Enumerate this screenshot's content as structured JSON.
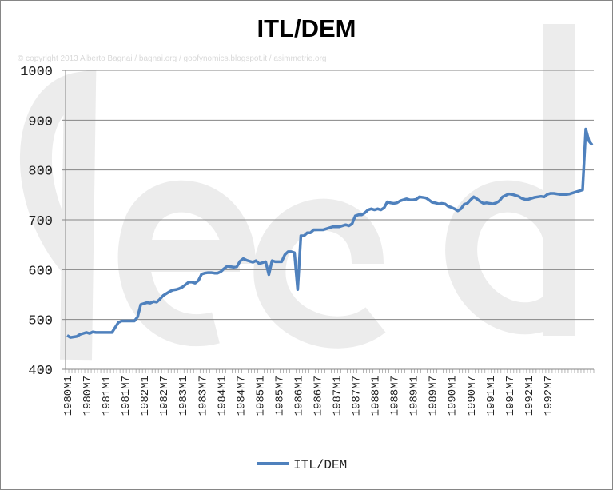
{
  "chart_data": {
    "type": "line",
    "title": "ITL/DEM",
    "watermark_text": "© copyright 2013 Alberto Bagnai / bagnai.org / goofynomics.blogspot.it / asimmetrie.org",
    "series_name": "ITL/DEM",
    "color": "#4f81bd",
    "ylim": [
      400,
      1000
    ],
    "yticks": [
      400,
      500,
      600,
      700,
      800,
      900,
      1000
    ],
    "grid": "horizontal",
    "legend": "bottom",
    "xtick_labels": [
      "1980M1",
      "1980M7",
      "1981M1",
      "1981M7",
      "1982M1",
      "1982M7",
      "1983M1",
      "1983M7",
      "1984M1",
      "1984M7",
      "1985M1",
      "1985M7",
      "1986M1",
      "1986M7",
      "1987M1",
      "1987M7",
      "1988M1",
      "1988M7",
      "1989M1",
      "1989M7",
      "1990M1",
      "1990M7",
      "1991M1",
      "1991M7",
      "1992M1",
      "1992M7"
    ],
    "x_start": "1980M1",
    "x_end": "1992M12",
    "values": [
      468,
      464,
      465,
      466,
      470,
      472,
      474,
      472,
      475,
      474,
      474,
      474,
      474,
      474,
      474,
      484,
      494,
      497,
      497,
      497,
      497,
      497,
      505,
      530,
      532,
      534,
      533,
      536,
      535,
      541,
      548,
      552,
      556,
      559,
      560,
      562,
      565,
      570,
      575,
      575,
      573,
      578,
      591,
      593,
      594,
      594,
      593,
      593,
      596,
      602,
      607,
      606,
      605,
      606,
      617,
      622,
      619,
      617,
      615,
      618,
      612,
      614,
      616,
      590,
      618,
      616,
      616,
      616,
      630,
      636,
      636,
      634,
      560,
      668,
      668,
      674,
      674,
      680,
      680,
      680,
      680,
      682,
      684,
      686,
      686,
      686,
      688,
      690,
      688,
      692,
      708,
      710,
      710,
      714,
      720,
      722,
      720,
      722,
      720,
      724,
      736,
      734,
      733,
      734,
      738,
      740,
      742,
      740,
      740,
      741,
      746,
      745,
      744,
      740,
      735,
      734,
      732,
      733,
      732,
      727,
      725,
      722,
      718,
      722,
      731,
      733,
      740,
      746,
      742,
      737,
      733,
      734,
      733,
      732,
      734,
      738,
      746,
      749,
      752,
      751,
      749,
      747,
      743,
      741,
      741,
      743,
      745,
      746,
      747,
      746,
      751,
      753,
      753,
      752,
      751,
      751,
      751,
      752,
      754,
      756,
      758,
      760,
      882,
      858,
      850
    ]
  },
  "legend": {
    "label": "ITL/DEM"
  }
}
